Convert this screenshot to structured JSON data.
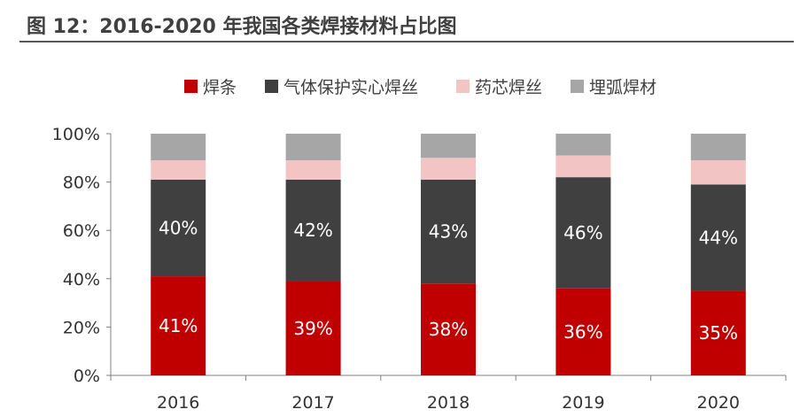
{
  "title": "图 12：2016-2020 年我国各类焊接材料占比图",
  "colors": {
    "焊条": "#c00000",
    "气体保护实心焊丝": "#404040",
    "药芯焊丝": "#f2c4c4",
    "埋弧焊材": "#a6a6a6",
    "axis": "#808080",
    "title_rule": "#595959"
  },
  "chart_data": {
    "type": "bar",
    "stacked": true,
    "categories": [
      "2016",
      "2017",
      "2018",
      "2019",
      "2020"
    ],
    "series": [
      {
        "name": "焊条",
        "values": [
          41,
          39,
          38,
          36,
          35
        ],
        "labels": [
          "41%",
          "39%",
          "38%",
          "36%",
          "35%"
        ]
      },
      {
        "name": "气体保护实心焊丝",
        "values": [
          40,
          42,
          43,
          46,
          44
        ],
        "labels": [
          "40%",
          "42%",
          "43%",
          "46%",
          "44%"
        ]
      },
      {
        "name": "药芯焊丝",
        "values": [
          8,
          8,
          9,
          9,
          10
        ]
      },
      {
        "name": "埋弧焊材",
        "values": [
          11,
          11,
          10,
          9,
          11
        ]
      }
    ],
    "ylim": [
      0,
      100
    ],
    "yticks": [
      "0%",
      "20%",
      "40%",
      "60%",
      "80%",
      "100%"
    ],
    "legend_position": "top"
  }
}
